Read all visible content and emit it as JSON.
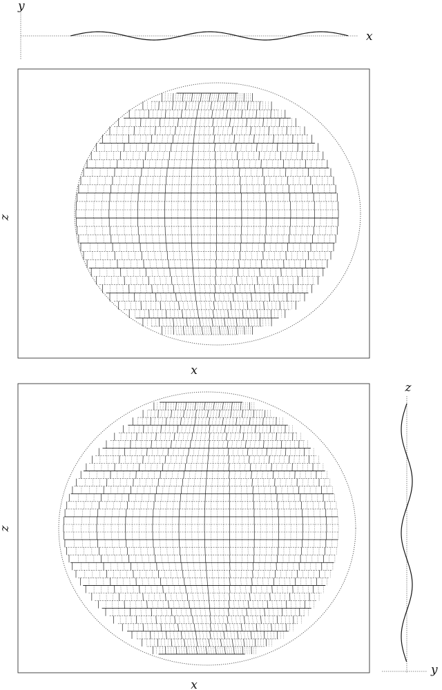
{
  "labels": {
    "top_y": "y",
    "top_x": "x",
    "panel1_z": "z",
    "panel1_x": "x",
    "panel2_z": "z",
    "panel2_x": "x",
    "side_z": "z",
    "side_y": "y"
  },
  "colors": {
    "ink": "#111111",
    "frame": "#333333",
    "dotted": "#444444"
  }
}
